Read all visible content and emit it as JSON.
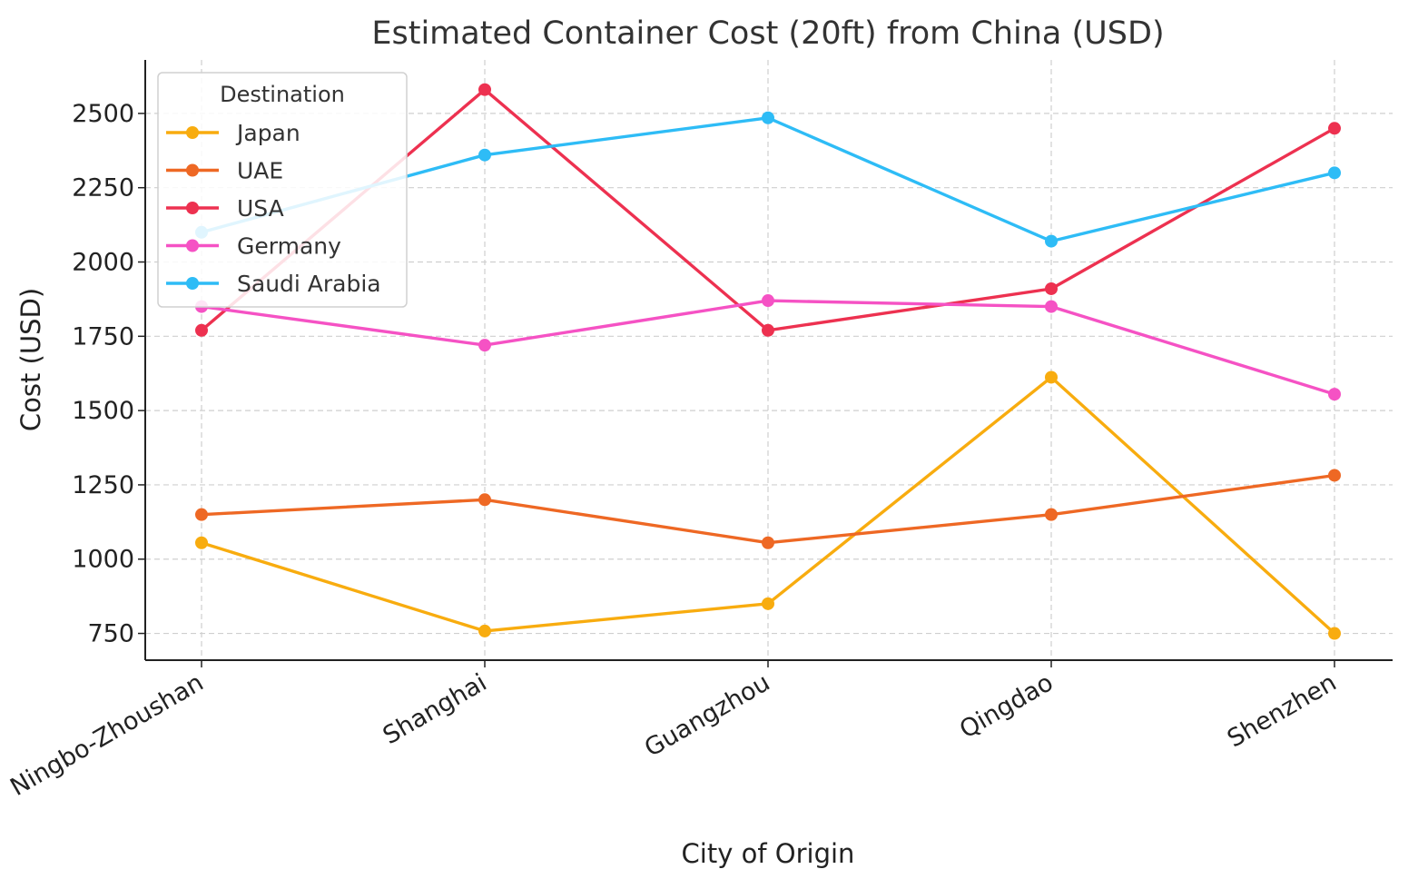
{
  "chart_data": {
    "type": "line",
    "title": "Estimated Container Cost (20ft) from China (USD)",
    "xlabel": "City of Origin",
    "ylabel": "Cost (USD)",
    "categories": [
      "Ningbo-Zhoushan",
      "Shanghai",
      "Guangzhou",
      "Qingdao",
      "Shenzhen"
    ],
    "ylim": [
      660,
      2680
    ],
    "yticks": [
      750,
      1000,
      1250,
      1500,
      1750,
      2000,
      2250,
      2500
    ],
    "grid": true,
    "legend": {
      "title": "Destination",
      "placement": "top-left"
    },
    "series": [
      {
        "name": "Japan",
        "color": "#f8ac0f",
        "values": [
          1055,
          758,
          850,
          1612,
          750
        ]
      },
      {
        "name": "UAE",
        "color": "#ee6824",
        "values": [
          1150,
          1200,
          1055,
          1150,
          1282
        ]
      },
      {
        "name": "USA",
        "color": "#ed3150",
        "values": [
          1770,
          2580,
          1770,
          1910,
          2450
        ]
      },
      {
        "name": "Germany",
        "color": "#f552c4",
        "values": [
          1850,
          1720,
          1870,
          1850,
          1555
        ]
      },
      {
        "name": "Saudi Arabia",
        "color": "#2ebcf6",
        "values": [
          2100,
          2360,
          2485,
          2070,
          2300
        ]
      }
    ]
  }
}
